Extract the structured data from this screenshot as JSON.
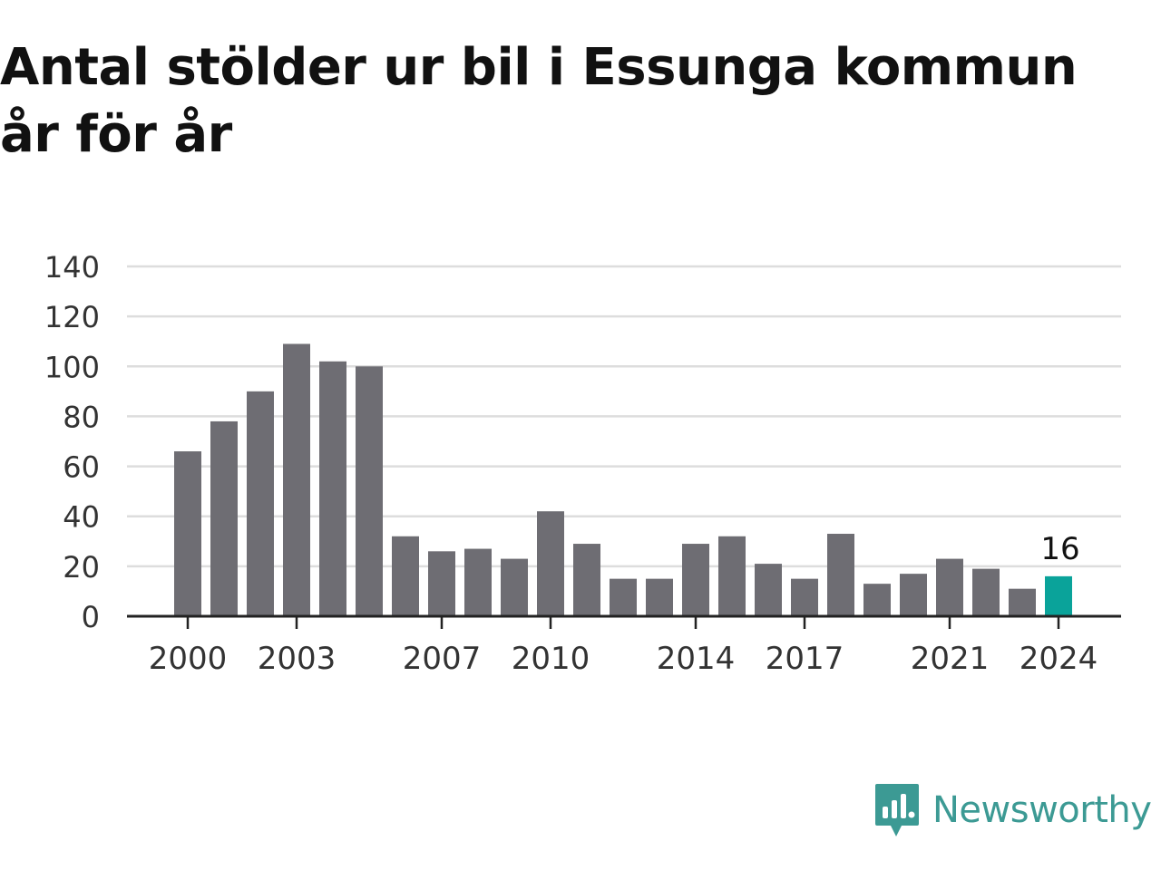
{
  "title": {
    "line1": "Antal stölder ur bil i Essunga kommun",
    "line2": "år för år"
  },
  "chart_data": {
    "type": "bar",
    "categories": [
      "2000",
      "2001",
      "2002",
      "2003",
      "2004",
      "2005",
      "2006",
      "2007",
      "2008",
      "2009",
      "2010",
      "2011",
      "2012",
      "2013",
      "2014",
      "2015",
      "2016",
      "2017",
      "2018",
      "2019",
      "2020",
      "2021",
      "2022",
      "2023",
      "2024"
    ],
    "values": [
      66,
      78,
      90,
      109,
      102,
      100,
      32,
      26,
      27,
      23,
      42,
      29,
      15,
      15,
      29,
      32,
      21,
      15,
      33,
      13,
      17,
      23,
      19,
      11,
      16
    ],
    "x_tick_labels": [
      "2000",
      "2003",
      "2007",
      "2010",
      "2014",
      "2017",
      "2021",
      "2024"
    ],
    "y_ticks": [
      0,
      20,
      40,
      60,
      80,
      100,
      120,
      140
    ],
    "ylim": [
      0,
      140
    ],
    "grid": true,
    "highlight": {
      "category": "2024",
      "label": "16"
    },
    "colors": {
      "bar": "#6e6d73",
      "highlight": "#0aa39a",
      "grid": "#dddddd",
      "axis": "#222222",
      "text": "#333333"
    }
  },
  "brand": {
    "name": "Newsworthy",
    "icon": "newsworthy-logo-icon",
    "color": "#3c9a94"
  }
}
